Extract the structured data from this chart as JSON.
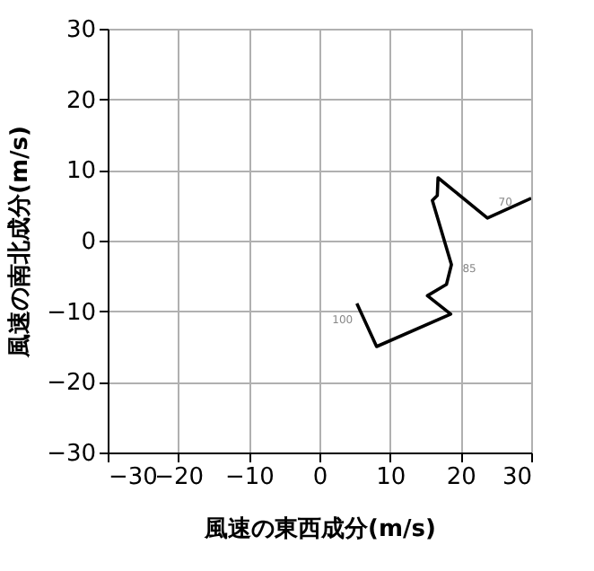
{
  "chart_data": {
    "type": "line",
    "xlabel": "風速の東西成分(m/s)",
    "ylabel": "風速の南北成分(m/s)",
    "x": [
      5.3,
      8.1,
      18.6,
      15.3,
      18.0,
      18.7,
      16.0,
      16.7,
      16.8,
      23.8,
      30.0
    ],
    "series": [
      {
        "color": "#000000",
        "values": [
          -8.9,
          -15.0,
          -10.4,
          -7.8,
          -6.2,
          -3.4,
          5.7,
          6.4,
          8.9,
          3.2,
          6.0
        ]
      }
    ],
    "xlim": [
      -30,
      30
    ],
    "ylim": [
      -30,
      30
    ],
    "xticks": [
      -30,
      -20,
      -10,
      0,
      10,
      20,
      30
    ],
    "yticks": [
      -30,
      -20,
      -10,
      0,
      10,
      20,
      30
    ],
    "grid": true,
    "marker": "none",
    "line_style": "solid",
    "annotations": [
      {
        "text": "100",
        "x": 5.3,
        "y": -8.9
      },
      {
        "text": "85",
        "x": 18.7,
        "y": -3.4
      },
      {
        "text": "70",
        "x": 23.8,
        "y": 3.2
      }
    ]
  }
}
